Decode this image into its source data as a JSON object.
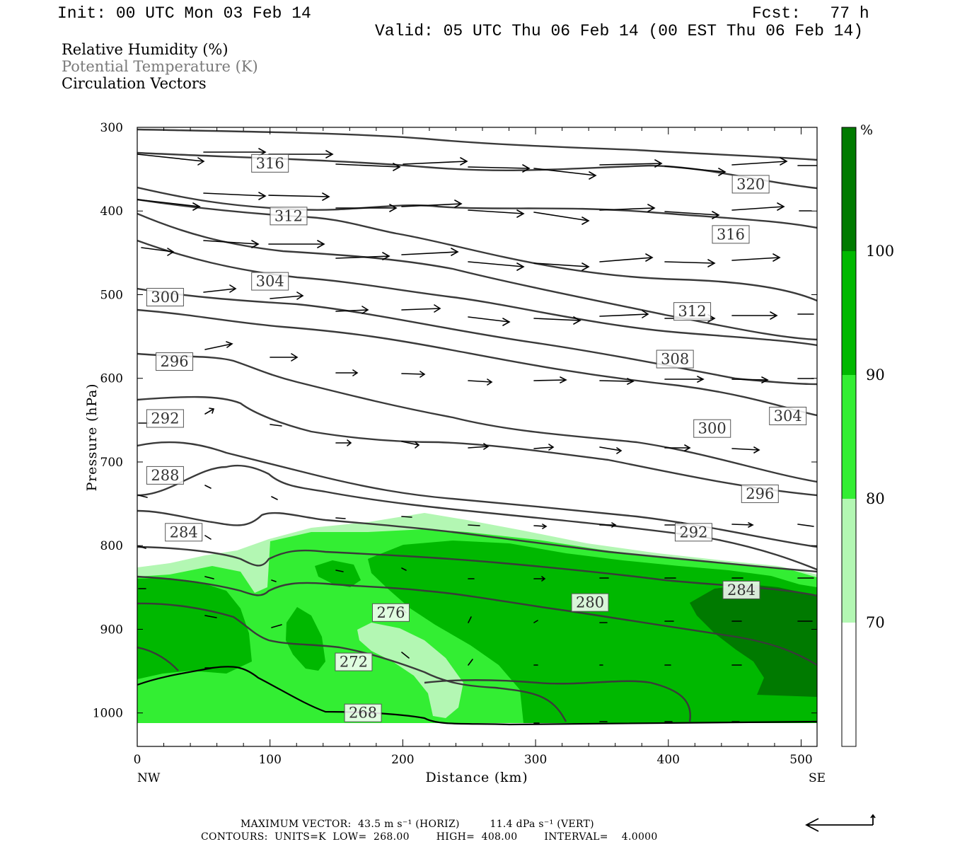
{
  "header": {
    "init": "Init: 00 UTC Mon 03 Feb 14",
    "fcst": "Fcst:   77 h",
    "valid": "Valid: 05 UTC Thu 06 Feb 14 (00 EST Thu 06 Feb 14)"
  },
  "legend": {
    "rh": "Relative Humidity (%)",
    "theta": "Potential Temperature (K)",
    "vectors": "Circulation Vectors"
  },
  "colorbar": {
    "unit": "%",
    "levels": [
      "100",
      "90",
      "80",
      "70"
    ],
    "colors": [
      "#007a00",
      "#00b800",
      "#33ee33",
      "#b3f7b3",
      "#ffffff"
    ]
  },
  "footer": {
    "line1": "MAXIMUM VECTOR:  43.5 m s⁻¹ (HORIZ)         11.4 dPa s⁻¹ (VERT)",
    "line2": "CONTOURS:  UNITS=K  LOW=  268.00        HIGH=  408.00        INTERVAL=    4.0000"
  },
  "chart_data": {
    "type": "cross-section",
    "xlabel": "Distance (km)",
    "ylabel": "Pressure (hPa)",
    "x_ticks": [
      "0",
      "100",
      "200",
      "300",
      "400",
      "500"
    ],
    "x_end_labels": [
      "NW",
      "SE"
    ],
    "y_ticks": [
      "300",
      "400",
      "500",
      "600",
      "700",
      "800",
      "900",
      "1000"
    ],
    "xlim": [
      0,
      512
    ],
    "ylim": [
      1040,
      300
    ],
    "contour_labels": [
      {
        "text": "316",
        "x": 100,
        "p": 343
      },
      {
        "text": "320",
        "x": 462,
        "p": 368
      },
      {
        "text": "312",
        "x": 114,
        "p": 406
      },
      {
        "text": "316",
        "x": 447,
        "p": 428
      },
      {
        "text": "304",
        "x": 100,
        "p": 484
      },
      {
        "text": "300",
        "x": 21,
        "p": 503
      },
      {
        "text": "312",
        "x": 418,
        "p": 520
      },
      {
        "text": "308",
        "x": 405,
        "p": 577
      },
      {
        "text": "296",
        "x": 28,
        "p": 580
      },
      {
        "text": "304",
        "x": 490,
        "p": 645
      },
      {
        "text": "292",
        "x": 21,
        "p": 648
      },
      {
        "text": "300",
        "x": 433,
        "p": 660
      },
      {
        "text": "288",
        "x": 21,
        "p": 716
      },
      {
        "text": "296",
        "x": 469,
        "p": 738
      },
      {
        "text": "284",
        "x": 35,
        "p": 784
      },
      {
        "text": "292",
        "x": 419,
        "p": 784
      },
      {
        "text": "284",
        "x": 455,
        "p": 853
      },
      {
        "text": "280",
        "x": 341,
        "p": 868
      },
      {
        "text": "276",
        "x": 191,
        "p": 880
      },
      {
        "text": "272",
        "x": 163,
        "p": 939
      },
      {
        "text": "268",
        "x": 170,
        "p": 1000
      }
    ]
  }
}
